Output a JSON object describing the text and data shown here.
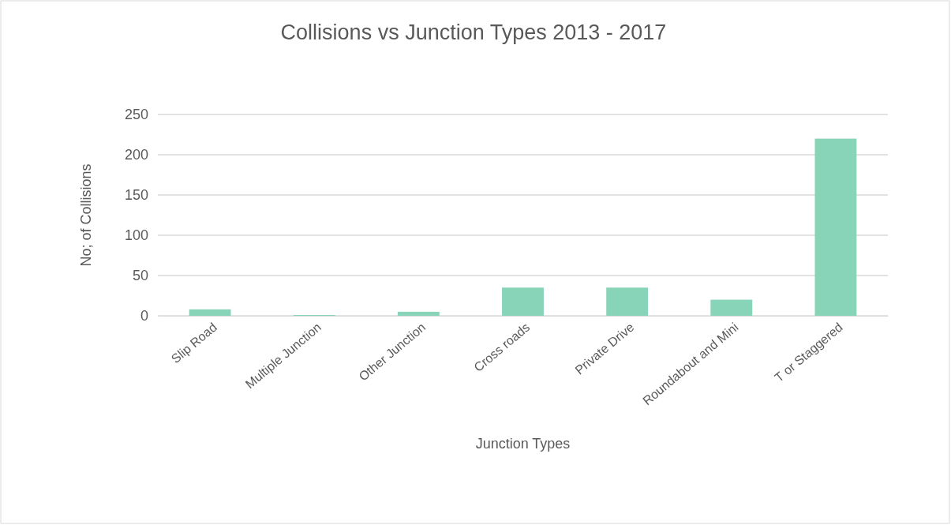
{
  "chart_data": {
    "type": "bar",
    "title": "Collisions vs Junction Types 2013 - 2017",
    "xlabel": "Junction Types",
    "ylabel": "No; of Collisions",
    "categories": [
      "Slip Road",
      "Multiple Junction",
      "Other Junction",
      "Cross roads",
      "Private Drive",
      "Roundabout and Mini",
      "T or Staggered"
    ],
    "values": [
      8,
      0,
      5,
      35,
      35,
      20,
      220
    ],
    "color": "#88d4b8",
    "ylim": [
      0,
      250
    ],
    "yticks": [
      0,
      50,
      100,
      150,
      200,
      250
    ],
    "grid": "y"
  }
}
